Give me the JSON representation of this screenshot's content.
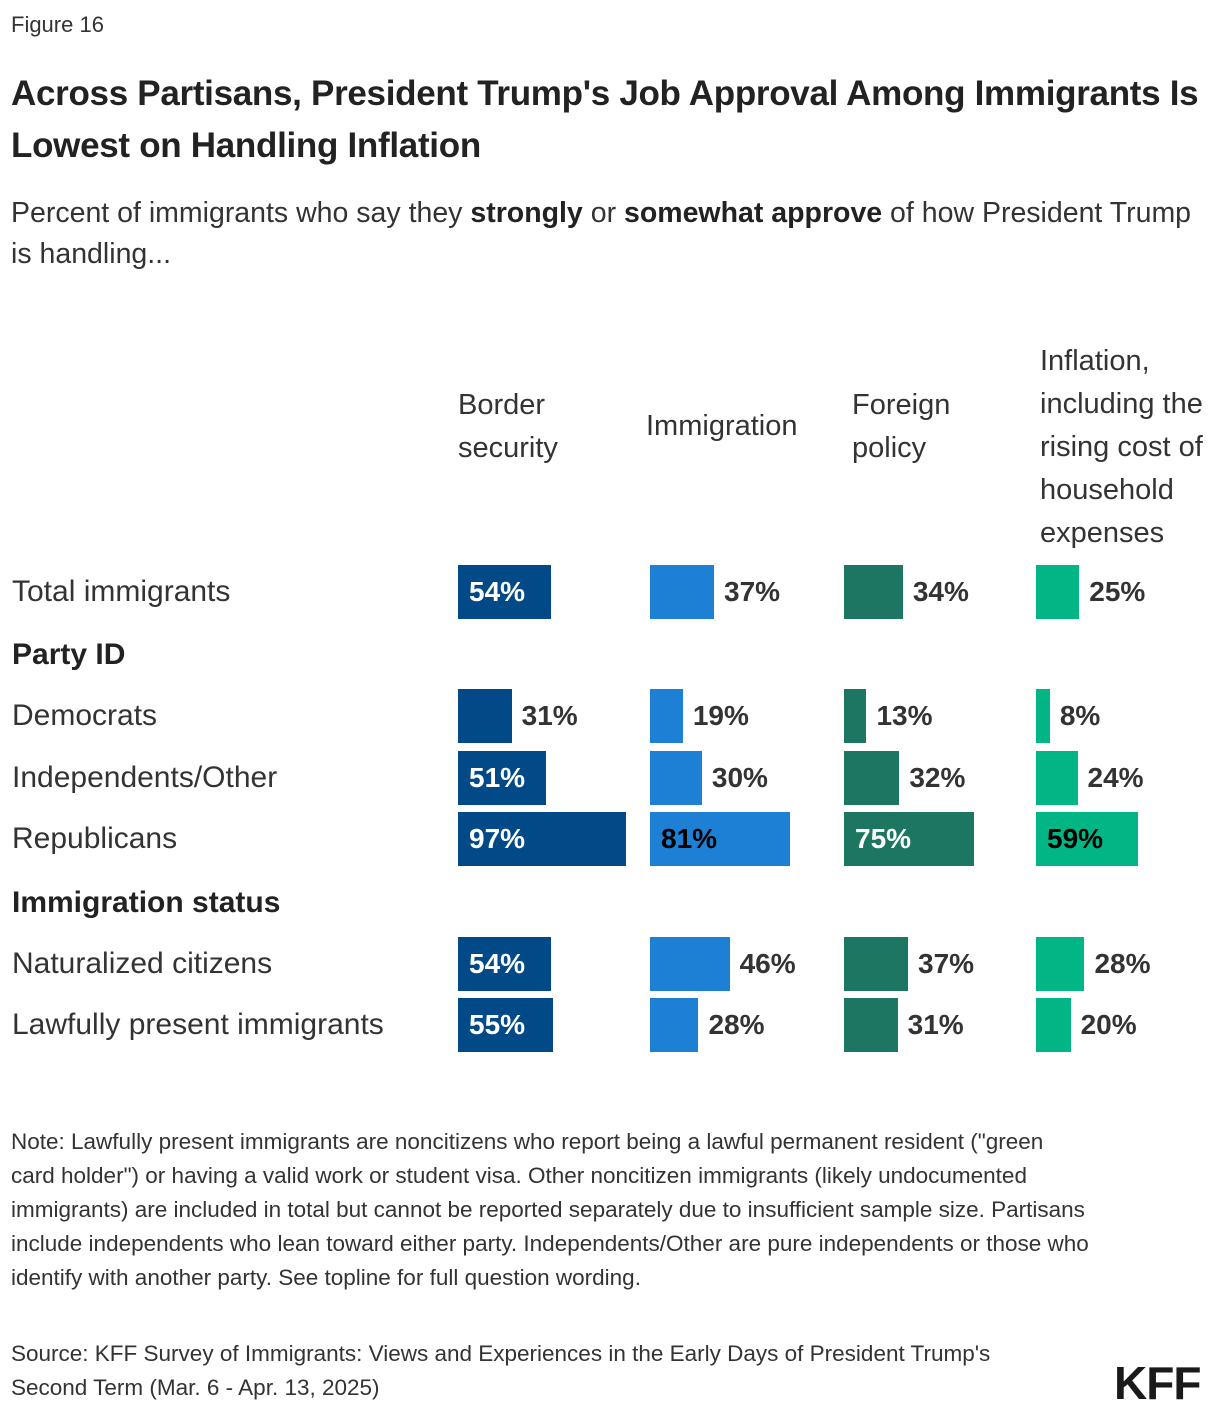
{
  "figure_label": "Figure 16",
  "logo": "KFF",
  "chart_data": {
    "type": "bar",
    "title": "Across Partisans, President Trump's Job Approval Among Immigrants Is Lowest on Handling Inflation",
    "subtitle_parts": [
      "Percent of immigrants who say they ",
      "strongly",
      " or ",
      "somewhat approve",
      " of how President Trump is handling..."
    ],
    "unit": "%",
    "series": [
      {
        "name": "Border security",
        "color": "#024a87",
        "label_color": "#ffffff"
      },
      {
        "name": "Immigration",
        "color": "#1d80d4",
        "label_color": "#000000"
      },
      {
        "name": "Foreign policy",
        "color": "#1c7662",
        "label_color": "#ffffff"
      },
      {
        "name": "Inflation, including the rising cost of household expenses",
        "color": "#01b585",
        "label_color": "#000000"
      }
    ],
    "groups": [
      "Party ID",
      "Immigration status"
    ],
    "rows": [
      {
        "label": "Total immigrants",
        "group": null,
        "values": [
          54,
          37,
          34,
          25
        ]
      },
      {
        "label": "Democrats",
        "group": "Party ID",
        "values": [
          31,
          19,
          13,
          8
        ]
      },
      {
        "label": "Independents/Other",
        "group": "Party ID",
        "values": [
          51,
          30,
          32,
          24
        ]
      },
      {
        "label": "Republicans",
        "group": "Party ID",
        "values": [
          97,
          81,
          75,
          59
        ]
      },
      {
        "label": "Naturalized citizens",
        "group": "Immigration status",
        "values": [
          54,
          46,
          37,
          28
        ]
      },
      {
        "label": "Lawfully present immigrants",
        "group": "Immigration status",
        "values": [
          55,
          28,
          31,
          20
        ]
      }
    ],
    "xlim": [
      0,
      100
    ]
  },
  "note": "Note: Lawfully present immigrants are noncitizens who report being a lawful permanent resident (\"green card holder\") or having a valid work or student visa. Other noncitizen immigrants (likely undocumented immigrants) are included in total but cannot be reported separately due to insufficient sample size. Partisans include independents who lean toward either party. Independents/Other are pure independents or those who identify with another party. See topline for full question wording.",
  "source": "Source: KFF Survey of Immigrants: Views and Experiences in the Early Days of President Trump's Second Term (Mar. 6 - Apr. 13, 2025)"
}
